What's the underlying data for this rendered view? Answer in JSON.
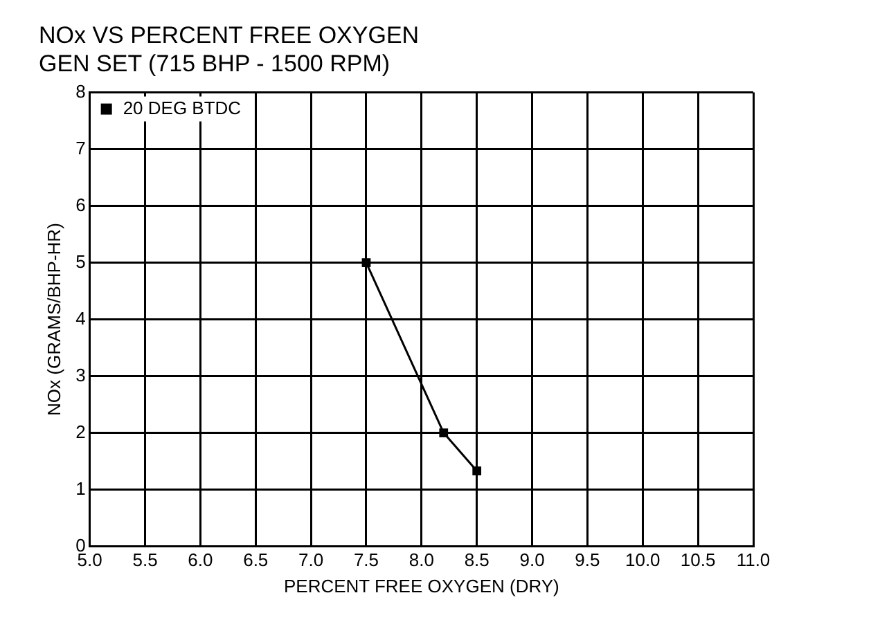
{
  "chart_data": {
    "type": "line",
    "title": [
      "NOx VS PERCENT FREE OXYGEN",
      "GEN SET (715 BHP - 1500 RPM)"
    ],
    "xlabel": "PERCENT FREE OXYGEN (DRY)",
    "ylabel": "NOx (GRAMS/BHP-HR)",
    "x": [
      7.5,
      8.2,
      8.5
    ],
    "series": [
      {
        "name": "20 DEG BTDC",
        "color": "#000000",
        "values": [
          5.0,
          2.0,
          1.33
        ]
      }
    ],
    "xlim": [
      5,
      11
    ],
    "xticks": [
      {
        "value": 5,
        "label": "5.0"
      },
      {
        "value": 5.5,
        "label": "5.5"
      },
      {
        "value": 6,
        "label": "6.0"
      },
      {
        "value": 6.5,
        "label": "6.5"
      },
      {
        "value": 7,
        "label": "7.0"
      },
      {
        "value": 7.5,
        "label": "7.5"
      },
      {
        "value": 8,
        "label": "8.0"
      },
      {
        "value": 8.5,
        "label": "8.5"
      },
      {
        "value": 9,
        "label": "9.0"
      },
      {
        "value": 9.5,
        "label": "9.5"
      },
      {
        "value": 10,
        "label": "10.0"
      },
      {
        "value": 10.5,
        "label": "10.5"
      },
      {
        "value": 11,
        "label": "11.0"
      }
    ],
    "ylim": [
      0,
      8
    ],
    "yticks": [
      0,
      1,
      2,
      3,
      4,
      5,
      6,
      7,
      8
    ],
    "grid": true,
    "legend": "top left",
    "marker": "square",
    "line_style": "solid"
  }
}
